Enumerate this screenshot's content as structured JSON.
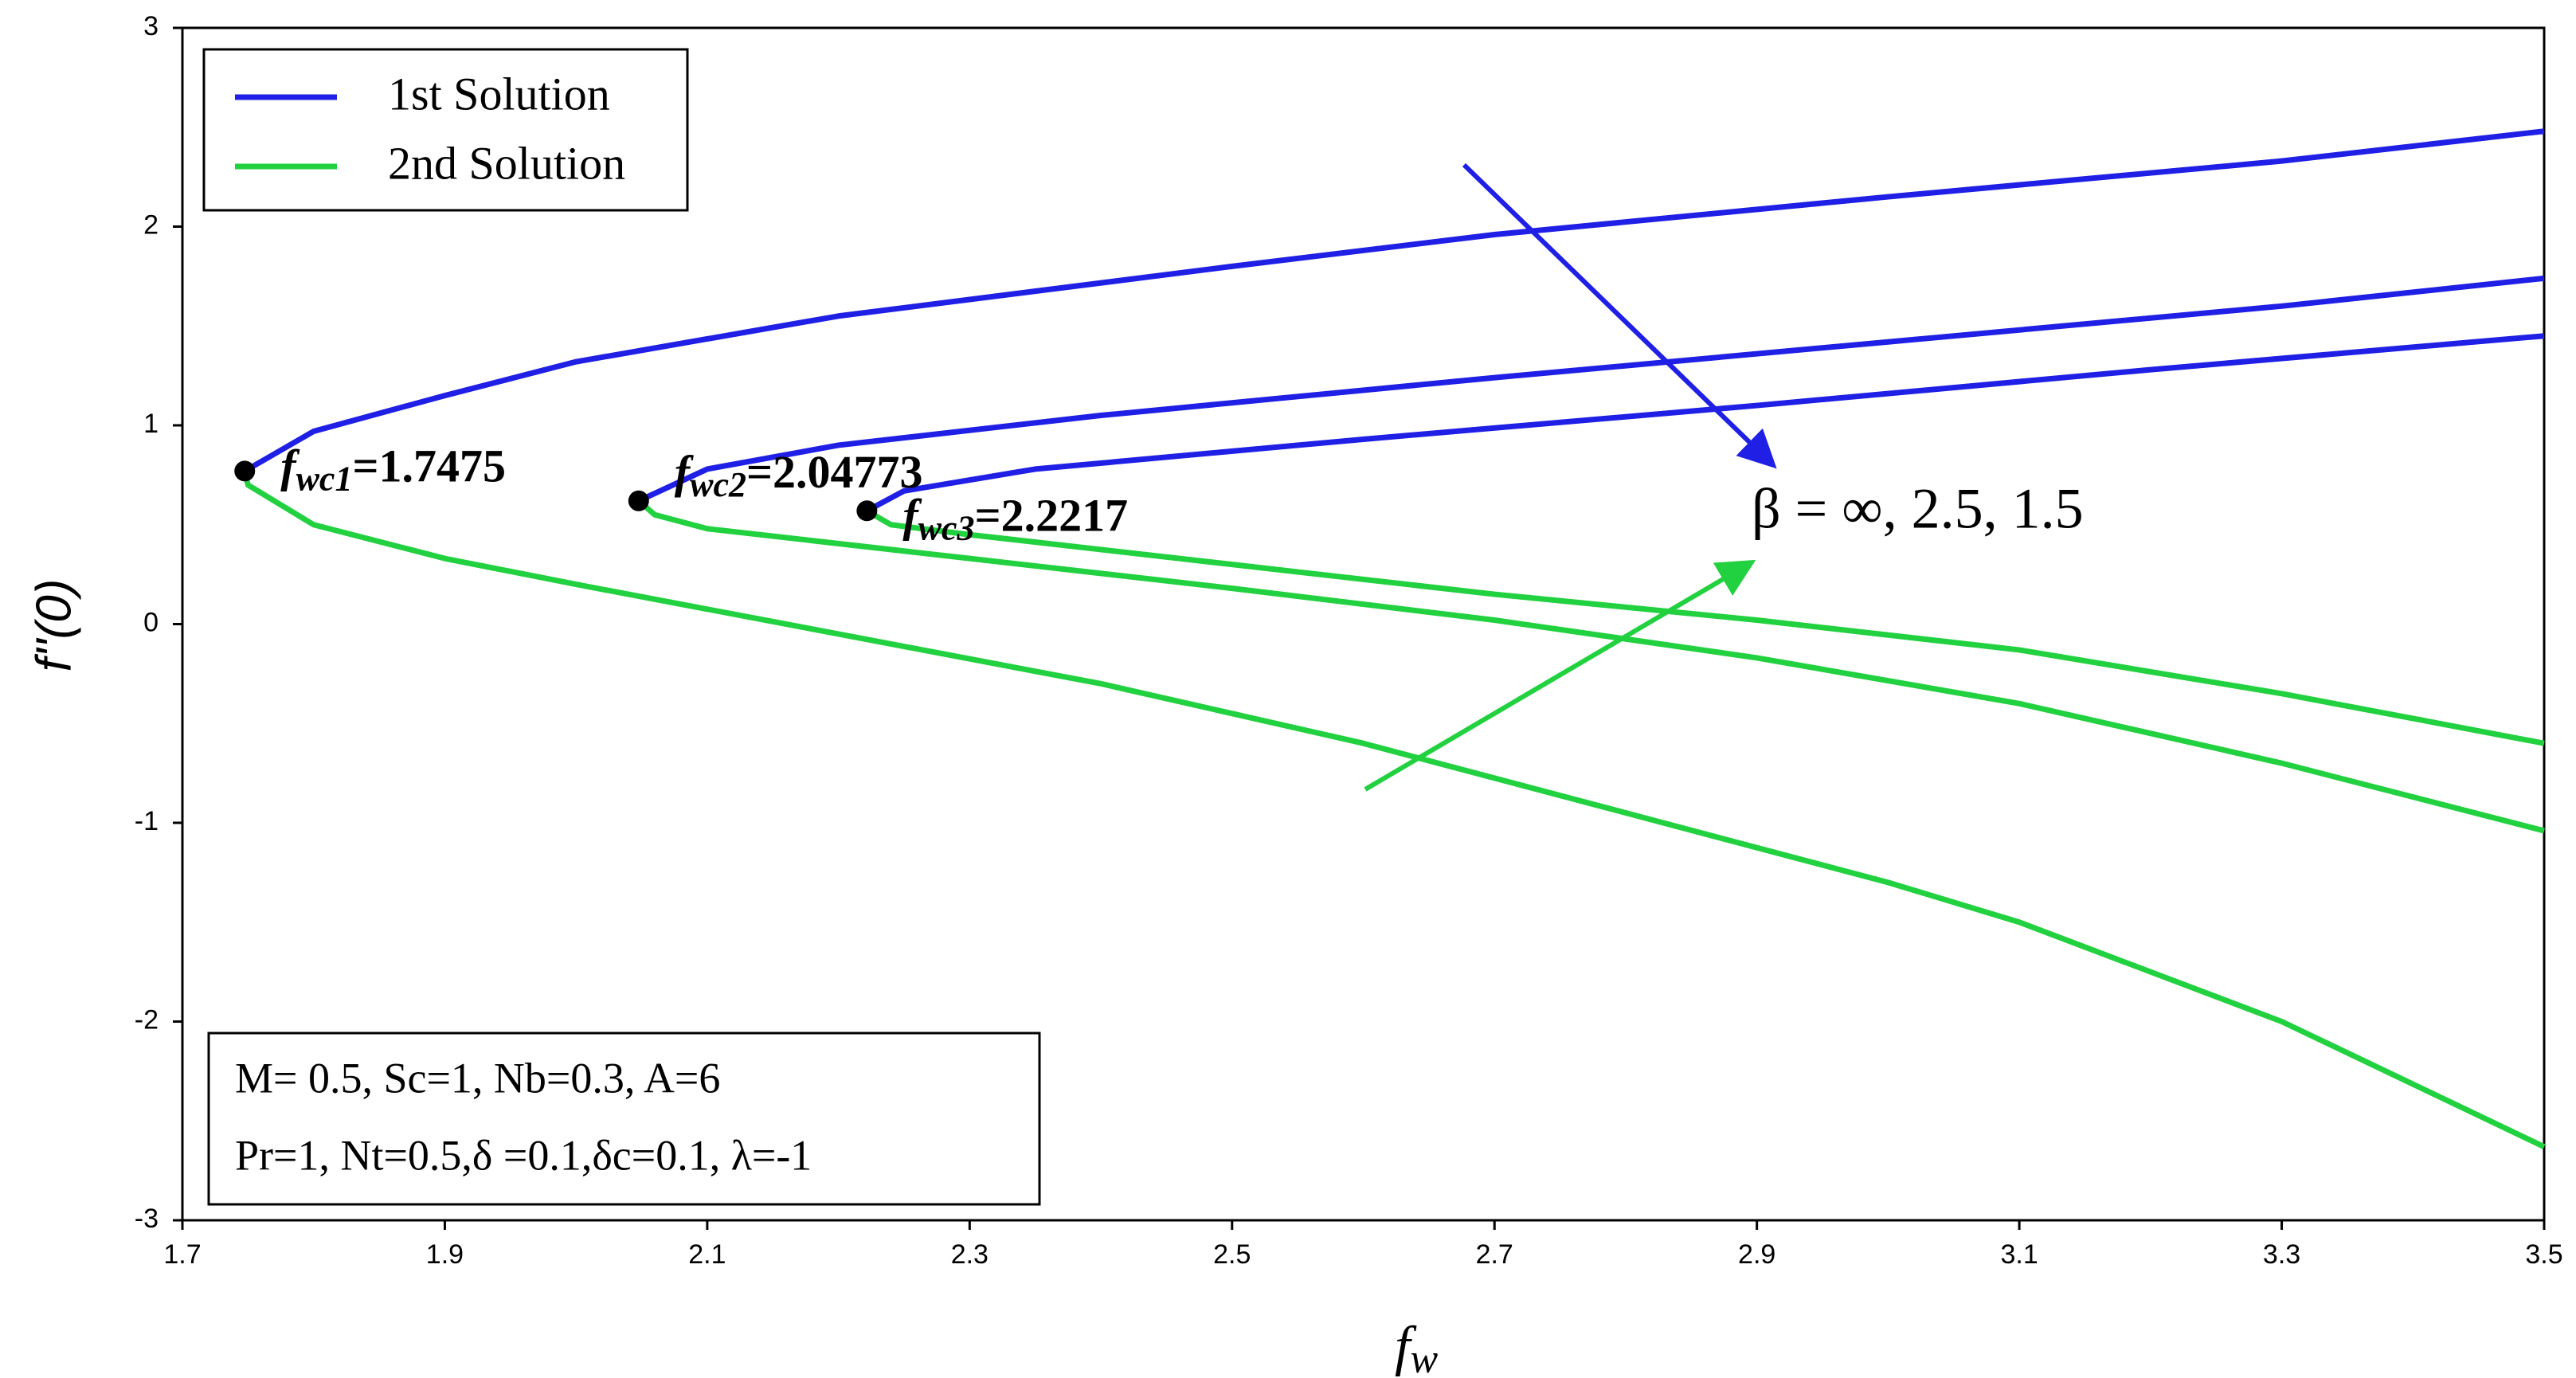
{
  "chart_data": {
    "type": "line",
    "x_label": {
      "symbol": "f",
      "subscript": "w"
    },
    "y_label": "f''(0)",
    "xlim": [
      1.7,
      3.5
    ],
    "ylim": [
      -3,
      3
    ],
    "xticks": [
      1.7,
      1.9,
      2.1,
      2.3,
      2.5,
      2.7,
      2.9,
      3.1,
      3.3,
      3.5
    ],
    "yticks": [
      -3,
      -2,
      -1,
      0,
      1,
      2,
      3
    ],
    "grid": false,
    "legend": "upper left",
    "series": [
      {
        "name": "1st Solution",
        "color": "#1f1fe6",
        "curves": [
          {
            "x": [
              1.7475,
              1.8,
              1.9,
              2.0,
              2.2,
              2.5,
              2.7,
              3.0,
              3.3,
              3.5
            ],
            "values": [
              0.77,
              0.97,
              1.15,
              1.32,
              1.55,
              1.8,
              1.96,
              2.15,
              2.33,
              2.48
            ]
          },
          {
            "x": [
              2.04773,
              2.1,
              2.2,
              2.4,
              2.7,
              3.0,
              3.3,
              3.5
            ],
            "values": [
              0.62,
              0.78,
              0.9,
              1.05,
              1.24,
              1.42,
              1.6,
              1.74
            ]
          },
          {
            "x": [
              2.2217,
              2.25,
              2.35,
              2.6,
              2.9,
              3.2,
              3.5
            ],
            "values": [
              0.57,
              0.67,
              0.78,
              0.93,
              1.1,
              1.28,
              1.45
            ]
          }
        ]
      },
      {
        "name": "2nd Solution",
        "color": "#22d13f",
        "curves": [
          {
            "x": [
              1.7475,
              1.75,
              1.8,
              1.9,
              2.0,
              2.2,
              2.4,
              2.6,
              2.8,
              3.0,
              3.1,
              3.3,
              3.5
            ],
            "values": [
              0.77,
              0.7,
              0.5,
              0.33,
              0.2,
              -0.05,
              -0.3,
              -0.6,
              -0.95,
              -1.3,
              -1.5,
              -2.0,
              -2.63
            ]
          },
          {
            "x": [
              2.04773,
              2.06,
              2.1,
              2.3,
              2.5,
              2.7,
              2.9,
              3.1,
              3.3,
              3.5
            ],
            "values": [
              0.62,
              0.55,
              0.48,
              0.33,
              0.18,
              0.02,
              -0.17,
              -0.4,
              -0.7,
              -1.04
            ]
          },
          {
            "x": [
              2.2217,
              2.24,
              2.3,
              2.5,
              2.7,
              2.9,
              3.1,
              3.3,
              3.5
            ],
            "values": [
              0.57,
              0.5,
              0.45,
              0.3,
              0.15,
              0.02,
              -0.13,
              -0.35,
              -0.6
            ]
          }
        ]
      }
    ],
    "critical_points": [
      {
        "x": 1.7475,
        "y": 0.77,
        "symbol": "f",
        "subscript": "wc1",
        "label": "=1.7475"
      },
      {
        "x": 2.04773,
        "y": 0.62,
        "symbol": "f",
        "subscript": "wc2",
        "label": "=2.04773"
      },
      {
        "x": 2.2217,
        "y": 0.57,
        "symbol": "f",
        "subscript": "wc3",
        "label": "=2.2217"
      }
    ],
    "annotation": "β =  ∞, 2.5, 1.5",
    "parameters": [
      "M= 0.5, Sc=1, Nb=0.3, A=6",
      "Pr=1, Nt=0.5,δ =0.1,δc=0.1, λ=-1"
    ]
  }
}
